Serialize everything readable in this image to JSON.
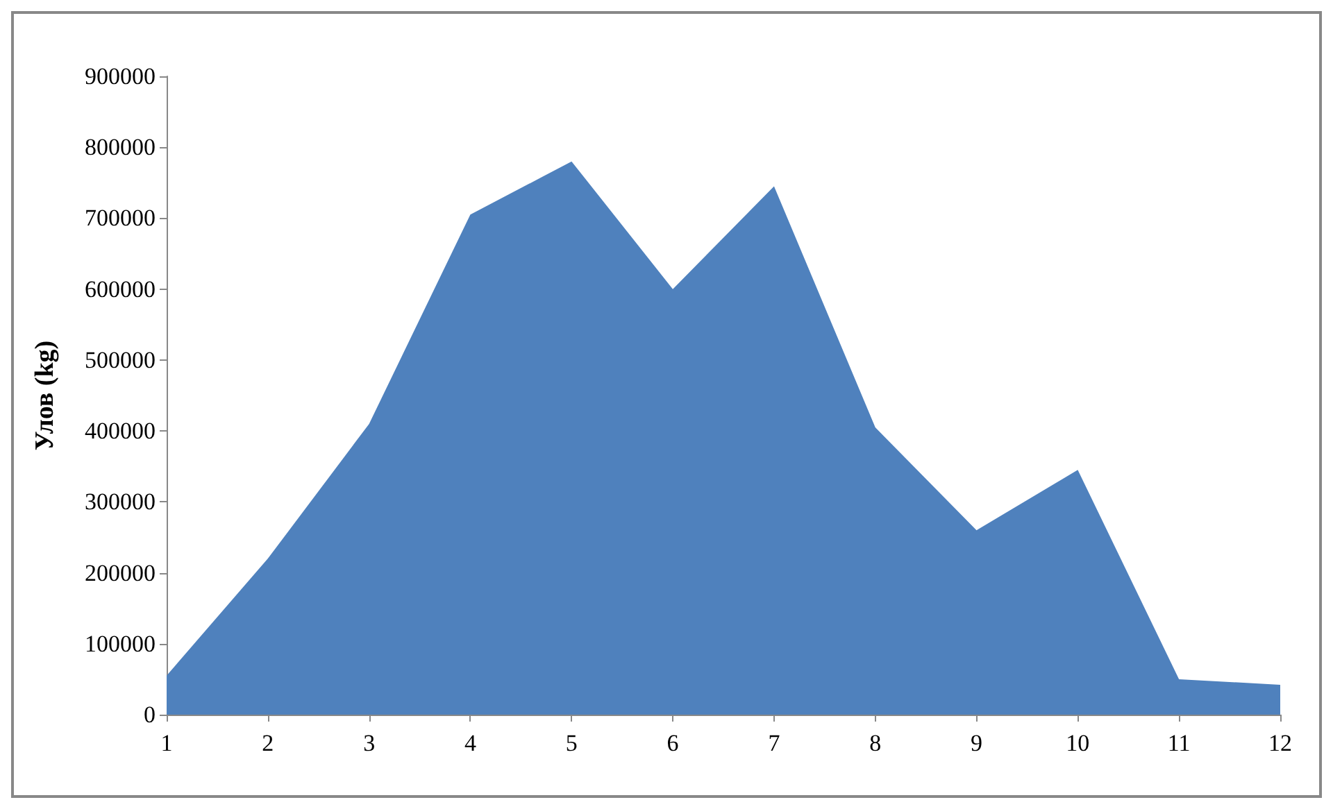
{
  "chart_data": {
    "type": "area",
    "ylabel": "Улов (kg)",
    "x": [
      1,
      2,
      3,
      4,
      5,
      6,
      7,
      8,
      9,
      10,
      11,
      12
    ],
    "values": [
      55000,
      220000,
      410000,
      705000,
      780000,
      600000,
      745000,
      405000,
      260000,
      345000,
      50000,
      42000
    ],
    "color": "#4f81bd",
    "xlim": [
      1,
      12
    ],
    "xticks": [
      1,
      2,
      3,
      4,
      5,
      6,
      7,
      8,
      9,
      10,
      11,
      12
    ],
    "ylim": [
      0,
      900000
    ],
    "yticks": [
      0,
      100000,
      200000,
      300000,
      400000,
      500000,
      600000,
      700000,
      800000,
      900000
    ],
    "grid": false,
    "marker": "none"
  }
}
